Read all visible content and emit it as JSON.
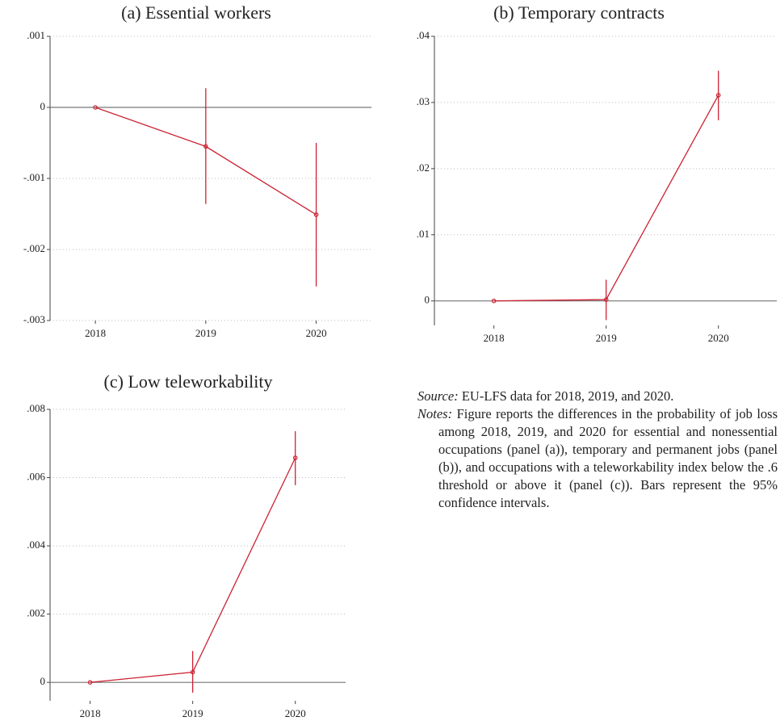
{
  "chart_data": [
    {
      "type": "line",
      "title": "(a) Essential workers",
      "color": "#cc2233",
      "x": [
        2018,
        2019,
        2020
      ],
      "values": [
        0,
        -0.00055,
        -0.00151
      ],
      "ci_lower": [
        0,
        -0.00136,
        -0.00252
      ],
      "ci_upper": [
        0,
        0.00027,
        -0.0005
      ],
      "xlim": [
        2017.59,
        2020.5
      ],
      "xticks": [
        2018,
        2019,
        2020
      ],
      "ylim": [
        -0.003,
        0.001
      ],
      "yticks": [
        {
          "value": -0.003,
          "label": "-.003"
        },
        {
          "value": -0.002,
          "label": "-.002"
        },
        {
          "value": -0.001,
          "label": "-.001"
        },
        0,
        {
          "value": 0.001,
          "label": ".001"
        }
      ],
      "grid": true,
      "yline": 0
    },
    {
      "type": "line",
      "title": "(b) Temporary contracts",
      "color": "#cc2233",
      "x": [
        2018,
        2019,
        2020
      ],
      "values": [
        0,
        0.0002,
        0.0311
      ],
      "ci_lower": [
        0,
        -0.0029,
        0.0273
      ],
      "ci_upper": [
        0,
        0.0032,
        0.0348
      ],
      "xlim": [
        2017.47,
        2020.52
      ],
      "xticks": [
        2018,
        2019,
        2020
      ],
      "ylim": [
        -0.0037,
        0.04
      ],
      "yticks": [
        0,
        {
          "value": 0.01,
          "label": ".01"
        },
        {
          "value": 0.02,
          "label": ".02"
        },
        {
          "value": 0.03,
          "label": ".03"
        },
        {
          "value": 0.04,
          "label": ".04"
        }
      ],
      "grid": true,
      "yline": 0
    },
    {
      "type": "line",
      "title": "(c) Low teleworkability",
      "color": "#cc2233",
      "x": [
        2018,
        2019,
        2020
      ],
      "values": [
        0,
        0.0003,
        0.00658
      ],
      "ci_lower": [
        0,
        -0.0003,
        0.00578
      ],
      "ci_upper": [
        0,
        0.00092,
        0.00736
      ],
      "xlim": [
        2017.61,
        2020.49
      ],
      "xticks": [
        2018,
        2019,
        2020
      ],
      "ylim": [
        -0.00054,
        0.008
      ],
      "yticks": [
        0,
        {
          "value": 0.002,
          "label": ".002"
        },
        {
          "value": 0.004,
          "label": ".004"
        },
        {
          "value": 0.006,
          "label": ".006"
        },
        {
          "value": 0.008,
          "label": ".008"
        }
      ],
      "grid": true,
      "yline": 0
    }
  ],
  "source": {
    "label": "Source:",
    "text": "EU-LFS data for 2018, 2019, and 2020."
  },
  "notes": {
    "label": "Notes:",
    "text": "Figure reports the differences in the probability of job loss among 2018, 2019, and 2020 for essential and nonessential occupations (panel (a)), temporary and permanent jobs (panel (b)), and occupations with a teleworkability index below the .6 threshold or above it (panel (c)). Bars represent the 95% confidence intervals."
  }
}
